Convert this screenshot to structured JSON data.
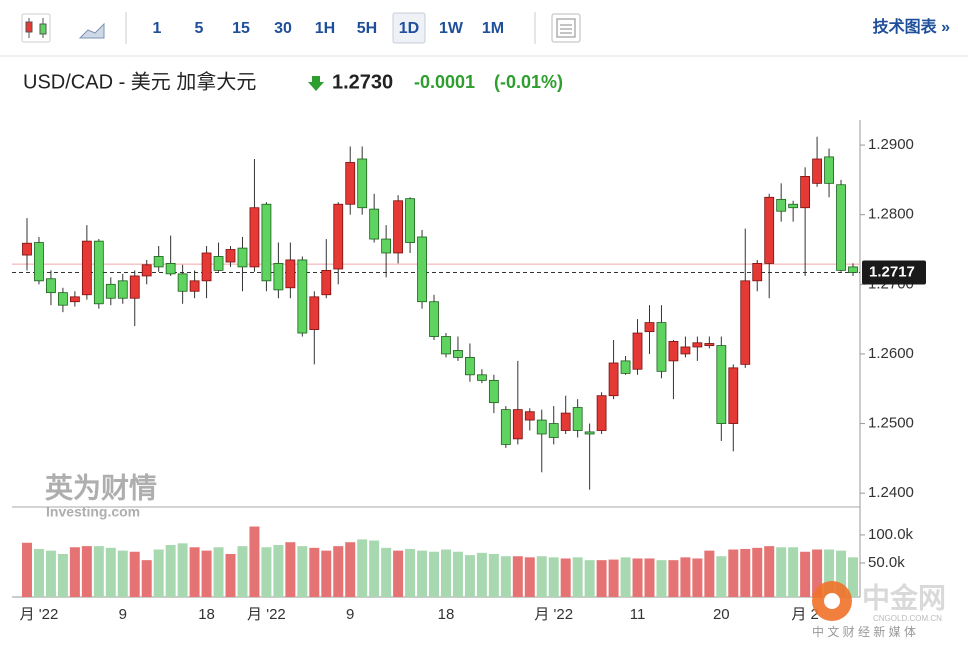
{
  "toolbar": {
    "intervals": [
      "1",
      "5",
      "15",
      "30",
      "1H",
      "5H",
      "1D",
      "1W",
      "1M"
    ],
    "active_index": 6,
    "link": "技术图表 »"
  },
  "header": {
    "pair": "USD/CAD - 美元 加拿大元",
    "price": "1.2730",
    "change": "-0.0001",
    "change_pct": "(-0.01%)"
  },
  "watermark": {
    "brand": "英为财情",
    "sub": "Investing.com"
  },
  "logo": {
    "name": "中金网",
    "domain": "CNGOLD.COM.CN",
    "tagline": "中 文 财 经 新 媒 体"
  },
  "chart_data": {
    "type": "candlestick",
    "categories": [
      null,
      "月 '22",
      null,
      null,
      null,
      null,
      null,
      null,
      "9",
      null,
      null,
      null,
      null,
      null,
      null,
      "18",
      null,
      null,
      null,
      null,
      "月 '22",
      null,
      null,
      null,
      null,
      null,
      null,
      "9",
      null,
      null,
      null,
      null,
      null,
      null,
      null,
      "18",
      null,
      null,
      null,
      null,
      null,
      null,
      null,
      null,
      "月 '22",
      null,
      null,
      null,
      null,
      null,
      null,
      "11",
      null,
      null,
      null,
      null,
      null,
      null,
      "20",
      null,
      null,
      null,
      null,
      null,
      null,
      "月 2",
      null,
      null,
      null,
      null
    ],
    "open": [
      1.2742,
      1.276,
      1.2708,
      1.2688,
      1.2675,
      1.2685,
      1.2762,
      1.27,
      1.2705,
      1.268,
      1.2712,
      1.274,
      1.273,
      1.2715,
      1.269,
      1.2705,
      1.274,
      1.2732,
      1.2752,
      1.2725,
      1.2815,
      1.273,
      1.2695,
      1.2735,
      1.2635,
      1.2685,
      1.2722,
      1.2815,
      1.288,
      1.2808,
      1.2765,
      1.2745,
      1.2823,
      1.2768,
      1.2675,
      1.2625,
      1.2605,
      1.2595,
      1.257,
      1.2562,
      1.252,
      1.2478,
      1.2505,
      1.2505,
      1.25,
      1.249,
      1.2523,
      1.2488,
      1.249,
      1.254,
      1.259,
      1.2578,
      1.2632,
      1.2645,
      1.259,
      1.26,
      1.261,
      1.2612,
      1.2612,
      1.25,
      1.2585,
      1.2705,
      1.273,
      1.2822,
      1.2815,
      1.281,
      1.2845,
      1.2883,
      1.2843,
      1.2725
    ],
    "high": [
      1.2795,
      1.2768,
      1.272,
      1.2695,
      1.269,
      1.2785,
      1.2765,
      1.271,
      1.2715,
      1.272,
      1.2735,
      1.2755,
      1.277,
      1.2728,
      1.272,
      1.2755,
      1.276,
      1.2755,
      1.2768,
      1.288,
      1.2818,
      1.276,
      1.276,
      1.274,
      1.269,
      1.2765,
      1.2818,
      1.2898,
      1.2898,
      1.283,
      1.2785,
      1.2828,
      1.2825,
      1.2778,
      1.2685,
      1.263,
      1.2625,
      1.2615,
      1.2578,
      1.257,
      1.2525,
      1.259,
      1.2522,
      1.252,
      1.2525,
      1.254,
      1.2535,
      1.25,
      1.2545,
      1.262,
      1.2597,
      1.265,
      1.267,
      1.267,
      1.262,
      1.2625,
      1.2625,
      1.2625,
      1.2625,
      1.2585,
      1.278,
      1.2735,
      1.283,
      1.2845,
      1.282,
      1.2868,
      1.2912,
      1.2895,
      1.285,
      1.273
    ],
    "low": [
      1.272,
      1.27,
      1.267,
      1.266,
      1.2668,
      1.2678,
      1.2665,
      1.267,
      1.2672,
      1.264,
      1.27,
      1.2718,
      1.2712,
      1.2672,
      1.268,
      1.268,
      1.2718,
      1.2725,
      1.269,
      1.2718,
      1.269,
      1.268,
      1.268,
      1.2625,
      1.2585,
      1.268,
      1.27,
      1.28,
      1.28,
      1.276,
      1.271,
      1.273,
      1.2745,
      1.2665,
      1.262,
      1.2595,
      1.259,
      1.256,
      1.2558,
      1.2515,
      1.2465,
      1.247,
      1.249,
      1.243,
      1.247,
      1.2485,
      1.248,
      1.2405,
      1.2485,
      1.2535,
      1.257,
      1.257,
      1.26,
      1.2565,
      1.2535,
      1.2595,
      1.259,
      1.2608,
      1.2475,
      1.246,
      1.258,
      1.269,
      1.268,
      1.279,
      1.279,
      1.2712,
      1.284,
      1.2825,
      1.2718,
      1.2712
    ],
    "close": [
      1.2759,
      1.2705,
      1.2688,
      1.267,
      1.2682,
      1.2762,
      1.2672,
      1.268,
      1.268,
      1.2712,
      1.2728,
      1.2725,
      1.2715,
      1.269,
      1.2705,
      1.2745,
      1.272,
      1.275,
      1.2725,
      1.281,
      1.2705,
      1.2692,
      1.2735,
      1.263,
      1.2682,
      1.272,
      1.2815,
      1.2875,
      1.281,
      1.2765,
      1.2745,
      1.282,
      1.276,
      1.2675,
      1.2625,
      1.26,
      1.2595,
      1.257,
      1.2562,
      1.253,
      1.247,
      1.252,
      1.2517,
      1.2485,
      1.248,
      1.2515,
      1.249,
      1.2485,
      1.254,
      1.2587,
      1.2572,
      1.263,
      1.2645,
      1.2575,
      1.2618,
      1.261,
      1.2616,
      1.2615,
      1.25,
      1.258,
      1.2705,
      1.273,
      1.2825,
      1.2805,
      1.281,
      1.2855,
      1.288,
      1.2845,
      1.272,
      1.2717
    ],
    "up_color": "#e53935",
    "down_color": "#5fd35f",
    "up_border": "#7a1010",
    "down_border": "#1d5e1d",
    "ylim": [
      1.2383,
      1.2936
    ],
    "yticks": [
      {
        "value": 1.24,
        "label": "1.2400"
      },
      {
        "value": 1.25,
        "label": "1.2500"
      },
      {
        "value": 1.26,
        "label": "1.2600"
      },
      {
        "value": 1.27,
        "label": "1.2700"
      },
      {
        "value": 1.28,
        "label": "1.2800"
      },
      {
        "value": 1.29,
        "label": "1.2900"
      }
    ],
    "last_price": 1.2717,
    "reference_line": 1.2729,
    "volume": {
      "values": [
        86000,
        75000,
        72000,
        66000,
        78000,
        80000,
        80000,
        77000,
        72000,
        70000,
        55000,
        74000,
        82000,
        85000,
        78000,
        72000,
        78000,
        66000,
        80000,
        115000,
        78000,
        82000,
        87000,
        80000,
        77000,
        72000,
        80000,
        87000,
        92000,
        90000,
        77000,
        72000,
        75000,
        72000,
        70000,
        74000,
        70000,
        64000,
        68000,
        66000,
        62000,
        62000,
        60000,
        62000,
        60000,
        58000,
        60000,
        55000,
        55000,
        56000,
        60000,
        58000,
        58000,
        55000,
        55000,
        60000,
        58000,
        72000,
        62000,
        74000,
        75000,
        77000,
        80000,
        78000,
        78000,
        70000,
        74000,
        74000,
        72000,
        60000
      ],
      "up_color": "#e57373",
      "down_color": "#a8d8b0",
      "ylim": [
        0,
        148000
      ],
      "yticks": [
        {
          "value": 50000,
          "label": "50.0k"
        },
        {
          "value": 100000,
          "label": "100.0k"
        }
      ]
    }
  }
}
